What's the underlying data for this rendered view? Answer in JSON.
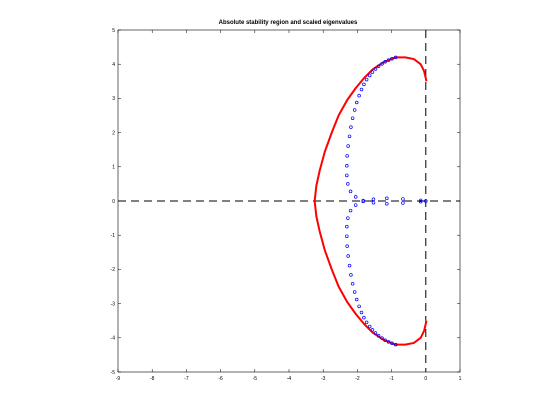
{
  "chart_data": {
    "type": "scatter",
    "title": "Absolute stability region and scaled eigenvalues",
    "xlabel": "",
    "ylabel": "",
    "xlim": [
      -9,
      1
    ],
    "ylim": [
      -5,
      5
    ],
    "x_ticks": [
      -9,
      -8,
      -7,
      -6,
      -5,
      -4,
      -3,
      -2,
      -1,
      0,
      1
    ],
    "y_ticks": [
      -5,
      -4,
      -3,
      -2,
      -1,
      0,
      1,
      2,
      3,
      4,
      5
    ],
    "reference_lines": [
      {
        "orientation": "horizontal",
        "value": 0,
        "style": "dashed",
        "color": "#000000"
      },
      {
        "orientation": "vertical",
        "value": 0,
        "style": "dashed",
        "color": "#000000"
      }
    ],
    "colors": {
      "boundary": "#ff0000",
      "eigenvalues": "#0000ff"
    },
    "series": [
      {
        "kind": "boundary-curve",
        "x": [
          0.02,
          -0.05,
          -0.15,
          -0.35,
          -0.6,
          -0.9,
          -1.25,
          -1.55,
          -1.8,
          -2.05,
          -2.3,
          -2.55,
          -2.75,
          -2.95,
          -3.1,
          -3.2,
          -3.25,
          -3.2,
          -3.1,
          -2.95,
          -2.75,
          -2.55,
          -2.3,
          -2.05,
          -1.8,
          -1.55,
          -1.25,
          -0.9,
          -0.6,
          -0.35,
          -0.15,
          -0.05,
          0.02
        ],
        "y": [
          -3.5,
          -3.8,
          -4.0,
          -4.15,
          -4.2,
          -4.2,
          -4.05,
          -3.85,
          -3.6,
          -3.3,
          -2.95,
          -2.5,
          -2.0,
          -1.45,
          -0.9,
          -0.45,
          0.0,
          0.45,
          0.9,
          1.45,
          2.0,
          2.5,
          2.95,
          3.3,
          3.6,
          3.85,
          4.05,
          4.2,
          4.2,
          4.15,
          4.0,
          3.8,
          3.5
        ]
      },
      {
        "kind": "eigenvalue-markers",
        "x": [
          -0.88,
          -0.99,
          -1.09,
          -1.19,
          -1.28,
          -1.38,
          -1.47,
          -1.56,
          -1.64,
          -1.73,
          -1.81,
          -1.88,
          -1.95,
          -2.02,
          -2.08,
          -2.14,
          -2.19,
          -2.23,
          -2.27,
          -2.3,
          -2.31,
          -2.31,
          -2.28,
          -2.2,
          -2.05,
          -1.83,
          -1.53,
          -1.14,
          -0.67,
          -0.15,
          0.0,
          -0.15,
          -0.67,
          -1.14,
          -1.53,
          -1.83,
          -2.05,
          -2.2,
          -2.28,
          -2.31,
          -2.31,
          -2.3,
          -2.27,
          -2.23,
          -2.19,
          -2.14,
          -2.08,
          -2.02,
          -1.95,
          -1.88,
          -1.81,
          -1.73,
          -1.64,
          -1.56,
          -1.47,
          -1.38,
          -1.28,
          -1.19,
          -1.09,
          -0.99,
          -0.88
        ],
        "y": [
          4.2,
          4.16,
          4.12,
          4.07,
          4.01,
          3.94,
          3.86,
          3.77,
          3.67,
          3.55,
          3.41,
          3.26,
          3.08,
          2.88,
          2.66,
          2.42,
          2.16,
          1.89,
          1.61,
          1.32,
          1.03,
          0.75,
          0.5,
          0.28,
          0.12,
          0.01,
          -0.05,
          -0.08,
          -0.06,
          -0.02,
          0.0,
          0.02,
          0.06,
          0.08,
          0.05,
          -0.01,
          -0.12,
          -0.28,
          -0.5,
          -0.75,
          -1.03,
          -1.32,
          -1.61,
          -1.89,
          -2.16,
          -2.42,
          -2.66,
          -2.88,
          -3.08,
          -3.26,
          -3.41,
          -3.55,
          -3.67,
          -3.77,
          -3.86,
          -3.94,
          -4.01,
          -4.07,
          -4.12,
          -4.16,
          -4.2
        ]
      }
    ]
  }
}
